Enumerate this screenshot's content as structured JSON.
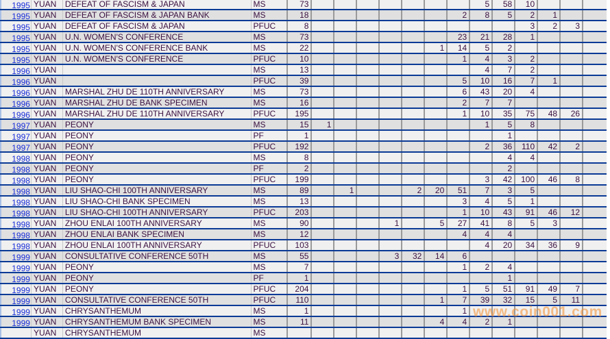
{
  "watermark": "www.coin001.com",
  "colors": {
    "row_border": "#0a3a96",
    "year_link": "#1a2ed8",
    "row_odd": "#f0f0f0",
    "row_even": "#e0e0e0",
    "watermark": "#f5963c"
  },
  "rows": [
    {
      "year": "1995",
      "unit": "YUAN",
      "name": "DEFEAT OF FASCISM & JAPAN",
      "grade": "MS",
      "total": "73",
      "counts": [
        "",
        "",
        "",
        "",
        "",
        "",
        "",
        "5",
        "58",
        "10",
        "",
        "",
        ""
      ]
    },
    {
      "year": "1995",
      "unit": "YUAN",
      "name": "DEFEAT OF FASCISM & JAPAN BANK",
      "grade": "MS",
      "total": "18",
      "counts": [
        "",
        "",
        "",
        "",
        "",
        "",
        "2",
        "8",
        "5",
        "2",
        "1",
        "",
        ""
      ]
    },
    {
      "year": "1995",
      "unit": "YUAN",
      "name": "DEFEAT OF FASCISM & JAPAN",
      "grade": "PFUC",
      "total": "8",
      "counts": [
        "",
        "",
        "",
        "",
        "",
        "",
        "",
        "",
        "",
        "3",
        "2",
        "3",
        ""
      ]
    },
    {
      "year": "1995",
      "unit": "YUAN",
      "name": "U.N. WOMEN'S CONFERENCE",
      "grade": "MS",
      "total": "73",
      "counts": [
        "",
        "",
        "",
        "",
        "",
        "",
        "23",
        "21",
        "28",
        "1",
        "",
        "",
        ""
      ]
    },
    {
      "year": "1995",
      "unit": "YUAN",
      "name": "U.N. WOMEN'S CONFERENCE BANK",
      "grade": "MS",
      "total": "22",
      "counts": [
        "",
        "",
        "",
        "",
        "",
        "1",
        "14",
        "5",
        "2",
        "",
        "",
        "",
        ""
      ]
    },
    {
      "year": "1995",
      "unit": "YUAN",
      "name": "U.N. WOMEN'S CONFERENCE",
      "grade": "PFUC",
      "total": "10",
      "counts": [
        "",
        "",
        "",
        "",
        "",
        "",
        "1",
        "4",
        "3",
        "2",
        "",
        "",
        ""
      ]
    },
    {
      "year": "1996",
      "unit": "YUAN",
      "name": "",
      "grade": "MS",
      "total": "13",
      "counts": [
        "",
        "",
        "",
        "",
        "",
        "",
        "",
        "4",
        "7",
        "2",
        "",
        "",
        ""
      ]
    },
    {
      "year": "1996",
      "unit": "YUAN",
      "name": "",
      "grade": "PFUC",
      "total": "39",
      "counts": [
        "",
        "",
        "",
        "",
        "",
        "",
        "5",
        "10",
        "16",
        "7",
        "1",
        "",
        ""
      ]
    },
    {
      "year": "1996",
      "unit": "YUAN",
      "name": "MARSHAL ZHU DE 110TH ANNIVERSARY",
      "grade": "MS",
      "total": "73",
      "counts": [
        "",
        "",
        "",
        "",
        "",
        "",
        "6",
        "43",
        "20",
        "4",
        "",
        "",
        ""
      ]
    },
    {
      "year": "1996",
      "unit": "YUAN",
      "name": "MARSHAL ZHU DE BANK SPECIMEN",
      "grade": "MS",
      "total": "16",
      "counts": [
        "",
        "",
        "",
        "",
        "",
        "",
        "2",
        "7",
        "7",
        "",
        "",
        "",
        ""
      ]
    },
    {
      "year": "1996",
      "unit": "YUAN",
      "name": "MARSHAL ZHU DE 110TH ANNIVERSARY",
      "grade": "PFUC",
      "total": "195",
      "counts": [
        "",
        "",
        "",
        "",
        "",
        "",
        "1",
        "10",
        "35",
        "75",
        "48",
        "26",
        ""
      ]
    },
    {
      "year": "1997",
      "unit": "YUAN",
      "name": "PEONY",
      "grade": "MS",
      "total": "15",
      "counts": [
        "1",
        "",
        "",
        "",
        "",
        "",
        "",
        "1",
        "5",
        "8",
        "",
        "",
        ""
      ]
    },
    {
      "year": "1997",
      "unit": "YUAN",
      "name": "PEONY",
      "grade": "PF",
      "total": "1",
      "counts": [
        "",
        "",
        "",
        "",
        "",
        "",
        "",
        "",
        "1",
        "",
        "",
        "",
        ""
      ]
    },
    {
      "year": "1997",
      "unit": "YUAN",
      "name": "PEONY",
      "grade": "PFUC",
      "total": "192",
      "counts": [
        "",
        "",
        "",
        "",
        "",
        "",
        "",
        "2",
        "36",
        "110",
        "42",
        "2",
        ""
      ]
    },
    {
      "year": "1998",
      "unit": "YUAN",
      "name": "PEONY",
      "grade": "MS",
      "total": "8",
      "counts": [
        "",
        "",
        "",
        "",
        "",
        "",
        "",
        "",
        "4",
        "4",
        "",
        "",
        ""
      ]
    },
    {
      "year": "1998",
      "unit": "YUAN",
      "name": "PEONY",
      "grade": "PF",
      "total": "2",
      "counts": [
        "",
        "",
        "",
        "",
        "",
        "",
        "",
        "",
        "2",
        "",
        "",
        "",
        ""
      ]
    },
    {
      "year": "1998",
      "unit": "YUAN",
      "name": "PEONY",
      "grade": "PFUC",
      "total": "199",
      "counts": [
        "",
        "",
        "",
        "",
        "",
        "",
        "",
        "3",
        "42",
        "100",
        "46",
        "8",
        ""
      ]
    },
    {
      "year": "1998",
      "unit": "YUAN",
      "name": "LIU SHAO-CHI 100TH ANNIVERSARY",
      "grade": "MS",
      "total": "89",
      "counts": [
        "",
        "1",
        "",
        "",
        "2",
        "20",
        "51",
        "7",
        "3",
        "5",
        "",
        "",
        ""
      ]
    },
    {
      "year": "1998",
      "unit": "YUAN",
      "name": "LIU SHAO-CHI BANK SPECIMEN",
      "grade": "MS",
      "total": "13",
      "counts": [
        "",
        "",
        "",
        "",
        "",
        "",
        "3",
        "4",
        "5",
        "1",
        "",
        "",
        ""
      ]
    },
    {
      "year": "1998",
      "unit": "YUAN",
      "name": "LIU SHAO-CHI 100TH ANNIVERSARY",
      "grade": "PFUC",
      "total": "203",
      "counts": [
        "",
        "",
        "",
        "",
        "",
        "",
        "1",
        "10",
        "43",
        "91",
        "46",
        "12",
        ""
      ]
    },
    {
      "year": "1998",
      "unit": "YUAN",
      "name": "ZHOU ENLAI 100TH ANNIVERSARY",
      "grade": "MS",
      "total": "90",
      "counts": [
        "",
        "",
        "",
        "1",
        "",
        "5",
        "27",
        "41",
        "8",
        "5",
        "3",
        "",
        ""
      ]
    },
    {
      "year": "1998",
      "unit": "YUAN",
      "name": "ZHOU ENLAI BANK SPECIMEN",
      "grade": "MS",
      "total": "12",
      "counts": [
        "",
        "",
        "",
        "",
        "",
        "",
        "4",
        "4",
        "4",
        "",
        "",
        "",
        ""
      ]
    },
    {
      "year": "1998",
      "unit": "YUAN",
      "name": "ZHOU ENLAI 100TH ANNIVERSARY",
      "grade": "PFUC",
      "total": "103",
      "counts": [
        "",
        "",
        "",
        "",
        "",
        "",
        "",
        "4",
        "20",
        "34",
        "36",
        "9",
        ""
      ]
    },
    {
      "year": "1999",
      "unit": "YUAN",
      "name": "CONSULTATIVE CONFERENCE 50TH",
      "grade": "MS",
      "total": "55",
      "counts": [
        "",
        "",
        "",
        "3",
        "32",
        "14",
        "6",
        "",
        "",
        "",
        "",
        "",
        ""
      ]
    },
    {
      "year": "1999",
      "unit": "YUAN",
      "name": "PEONY",
      "grade": "MS",
      "total": "7",
      "counts": [
        "",
        "",
        "",
        "",
        "",
        "",
        "1",
        "2",
        "4",
        "",
        "",
        "",
        ""
      ]
    },
    {
      "year": "1999",
      "unit": "YUAN",
      "name": "PEONY",
      "grade": "PF",
      "total": "1",
      "counts": [
        "",
        "",
        "",
        "",
        "",
        "",
        "",
        "",
        "1",
        "",
        "",
        "",
        ""
      ]
    },
    {
      "year": "1999",
      "unit": "YUAN",
      "name": "PEONY",
      "grade": "PFUC",
      "total": "204",
      "counts": [
        "",
        "",
        "",
        "",
        "",
        "",
        "1",
        "5",
        "51",
        "91",
        "49",
        "7",
        ""
      ]
    },
    {
      "year": "1999",
      "unit": "YUAN",
      "name": "CONSULTATIVE CONFERENCE 50TH",
      "grade": "PFUC",
      "total": "110",
      "counts": [
        "",
        "",
        "",
        "",
        "",
        "1",
        "7",
        "39",
        "32",
        "15",
        "5",
        "11",
        ""
      ]
    },
    {
      "year": "1999",
      "unit": "YUAN",
      "name": "CHRYSANTHEMUM",
      "grade": "MS",
      "total": "1",
      "counts": [
        "",
        "",
        "",
        "",
        "",
        "",
        "1",
        "",
        "",
        "",
        "",
        "",
        ""
      ]
    },
    {
      "year": "1999",
      "unit": "YUAN",
      "name": "CHRYSANTHEMUM BANK SPECIMEN",
      "grade": "MS",
      "total": "11",
      "counts": [
        "",
        "",
        "",
        "",
        "",
        "4",
        "4",
        "2",
        "1",
        "",
        "",
        "",
        ""
      ]
    },
    {
      "year": "",
      "unit": "YUAN",
      "name": "CHRYSANTHEMUM",
      "grade": "MS",
      "total": "",
      "counts": [
        "",
        "",
        "",
        "",
        "",
        "",
        "",
        "",
        "",
        "",
        "",
        "",
        ""
      ]
    }
  ]
}
